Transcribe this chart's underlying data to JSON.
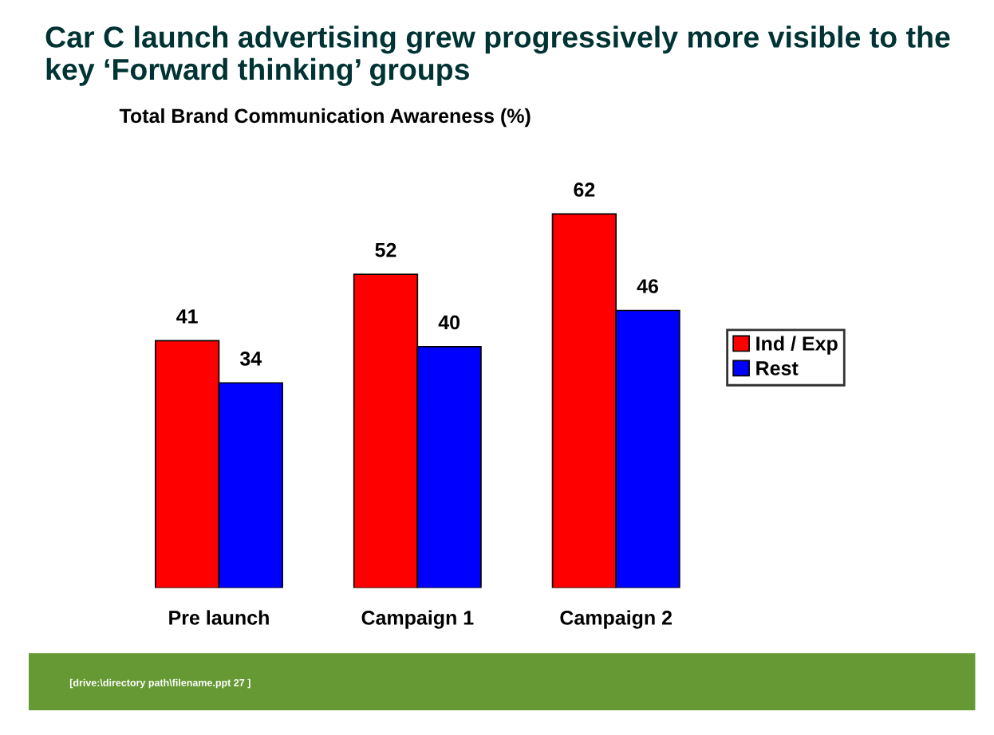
{
  "chart_data": {
    "type": "bar",
    "title": "Car C launch advertising grew progressively more visible to the key ‘Forward thinking’ groups",
    "subtitle": "Total Brand Communication Awareness (%)",
    "categories": [
      "Pre launch",
      "Campaign 1",
      "Campaign 2"
    ],
    "series": [
      {
        "name": "Ind / Exp",
        "color": "#ff0000",
        "values": [
          41,
          52,
          62
        ]
      },
      {
        "name": "Rest",
        "color": "#0000ff",
        "values": [
          34,
          40,
          46
        ]
      }
    ],
    "data_labels": true,
    "legend": "right",
    "grid": false,
    "annotations": [
      "[drive:\\directory path\\filename.ppt 27 ]"
    ]
  }
}
